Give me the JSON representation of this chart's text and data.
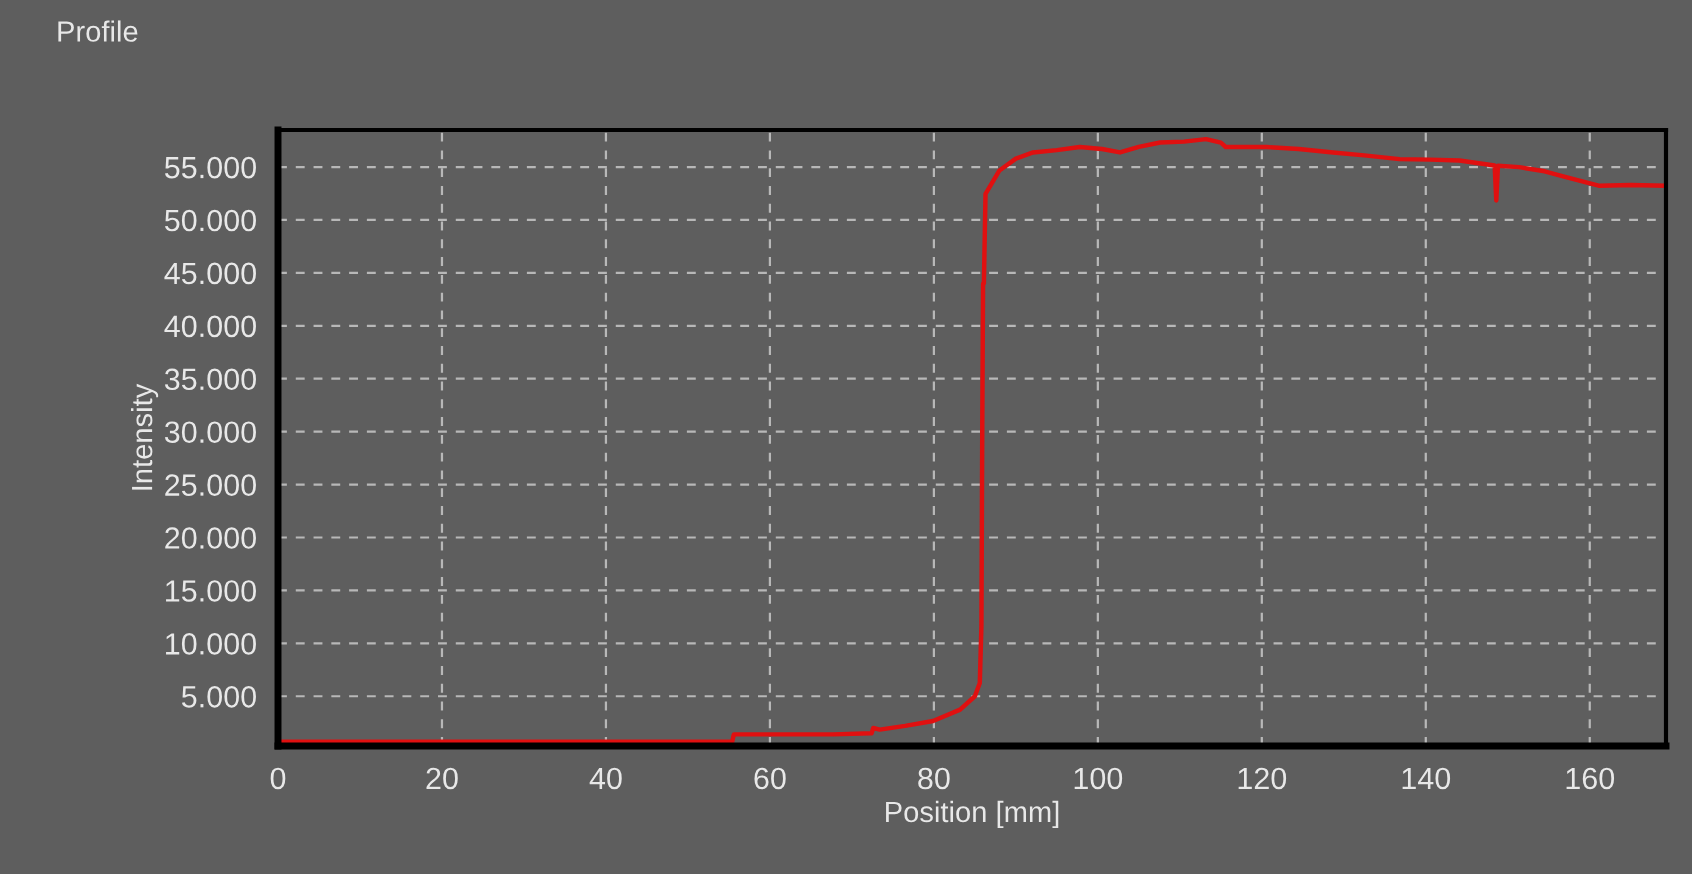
{
  "chart_data": {
    "type": "line",
    "title": "Profile",
    "xlabel": "Position [mm]",
    "ylabel": "Intensity",
    "series": [
      {
        "color": "#e01010",
        "x": [
          0,
          20,
          40,
          55.4,
          55.6,
          67.7,
          72.4,
          72.6,
          73.4,
          76.5,
          79.9,
          83.2,
          85.0,
          85.6,
          85.8,
          85.9,
          86.0,
          86.1,
          86.3,
          88.0,
          90.0,
          92.1,
          95.0,
          97.8,
          100.5,
          102.7,
          105.0,
          107.6,
          110.5,
          113.2,
          115.0,
          115.6,
          118.0,
          120.6,
          124.5,
          128.7,
          132.5,
          136.8,
          140.5,
          144.1,
          148.4,
          148.6,
          148.8,
          151.4,
          154.5,
          157.1,
          161.2,
          165.0,
          169.3
        ],
        "values": [
          700,
          700,
          700,
          700,
          1400,
          1400,
          1500,
          2000,
          1850,
          2200,
          2660,
          3740,
          5000,
          6250,
          11660,
          30000,
          43980,
          44000,
          52470,
          54680,
          55800,
          56380,
          56600,
          56890,
          56700,
          56380,
          56900,
          57320,
          57400,
          57640,
          57300,
          56890,
          56900,
          56890,
          56700,
          56380,
          56100,
          55750,
          55700,
          55620,
          55150,
          51840,
          55120,
          54990,
          54600,
          54050,
          53230,
          53300,
          53230
        ]
      }
    ],
    "xlim": [
      0,
      169.3
    ],
    "xticks": [
      0,
      20,
      40,
      60,
      80,
      100,
      120,
      140,
      160
    ],
    "ylim": [
      300,
      58500
    ],
    "yticks": [
      {
        "value": 5000,
        "label": "5.000"
      },
      {
        "value": 10000,
        "label": "10.000"
      },
      {
        "value": 15000,
        "label": "15.000"
      },
      {
        "value": 20000,
        "label": "20.000"
      },
      {
        "value": 25000,
        "label": "25.000"
      },
      {
        "value": 30000,
        "label": "30.000"
      },
      {
        "value": 35000,
        "label": "35.000"
      },
      {
        "value": 40000,
        "label": "40.000"
      },
      {
        "value": 45000,
        "label": "45.000"
      },
      {
        "value": 50000,
        "label": "50.000"
      },
      {
        "value": 55000,
        "label": "55.000"
      }
    ],
    "grid": true,
    "line_style": "solid",
    "marker": "none",
    "legend": false
  }
}
